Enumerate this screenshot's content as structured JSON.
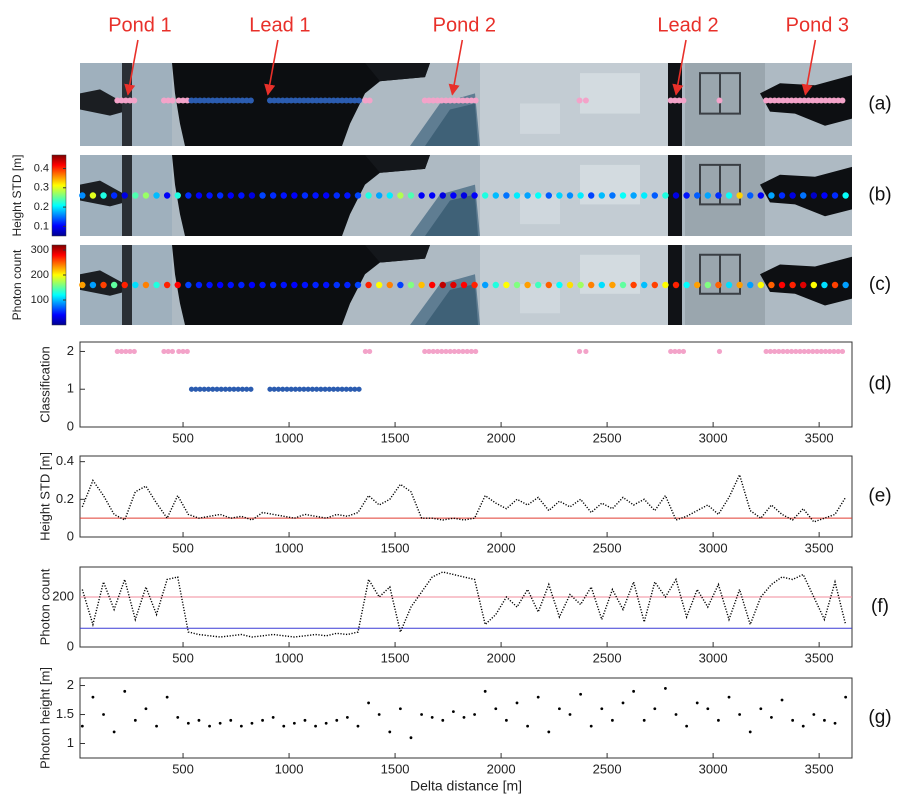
{
  "chart_data": [
    {
      "type": "image-strip",
      "panel_label": "(a)",
      "xlim": [
        14,
        3655
      ],
      "annotations": [
        {
          "text": "Pond 1",
          "x": 240
        },
        {
          "text": "Lead 1",
          "x": 900
        },
        {
          "text": "Pond 2",
          "x": 1770
        },
        {
          "text": "Lead 2",
          "x": 2825
        },
        {
          "text": "Pond 3",
          "x": 3435
        }
      ]
    },
    {
      "type": "image-strip",
      "panel_label": "(b)",
      "xlim": [
        14,
        3655
      ],
      "ylabel": "Height STD [m]",
      "colormap": "jet",
      "clim": [
        0.05,
        0.47
      ],
      "cticks": [
        0.1,
        0.2,
        0.3,
        0.4
      ]
    },
    {
      "type": "image-strip",
      "panel_label": "(c)",
      "xlim": [
        14,
        3655
      ],
      "ylabel": "Photon count",
      "colormap": "jet",
      "clim": [
        0,
        320
      ],
      "cticks": [
        100,
        200,
        300
      ]
    },
    {
      "type": "scatter",
      "panel_label": "(d)",
      "ylabel": "Classification",
      "xlim": [
        14,
        3655
      ],
      "ylim": [
        0,
        2.25
      ],
      "xticks": [
        500,
        1000,
        1500,
        2000,
        2500,
        3000,
        3500
      ],
      "yticks": [
        0,
        1,
        2
      ],
      "class_colors": [
        "#2b5cb0",
        "#f3a3c9"
      ],
      "x": [
        190,
        210,
        230,
        250,
        270,
        410,
        430,
        450,
        480,
        500,
        520,
        540,
        560,
        580,
        600,
        620,
        640,
        660,
        680,
        700,
        720,
        740,
        760,
        780,
        800,
        820,
        910,
        930,
        950,
        970,
        990,
        1010,
        1030,
        1050,
        1070,
        1090,
        1110,
        1130,
        1150,
        1170,
        1190,
        1210,
        1230,
        1250,
        1270,
        1290,
        1310,
        1330,
        1360,
        1380,
        1640,
        1660,
        1680,
        1700,
        1720,
        1740,
        1760,
        1780,
        1800,
        1820,
        1840,
        1860,
        1880,
        2370,
        2400,
        2800,
        2820,
        2840,
        2860,
        3030,
        3250,
        3270,
        3290,
        3310,
        3330,
        3350,
        3370,
        3390,
        3410,
        3430,
        3450,
        3470,
        3490,
        3510,
        3530,
        3550,
        3570,
        3590,
        3610
      ],
      "values": [
        2,
        2,
        2,
        2,
        2,
        2,
        2,
        2,
        2,
        2,
        2,
        1,
        1,
        1,
        1,
        1,
        1,
        1,
        1,
        1,
        1,
        1,
        1,
        1,
        1,
        1,
        1,
        1,
        1,
        1,
        1,
        1,
        1,
        1,
        1,
        1,
        1,
        1,
        1,
        1,
        1,
        1,
        1,
        1,
        1,
        1,
        1,
        1,
        2,
        2,
        2,
        2,
        2,
        2,
        2,
        2,
        2,
        2,
        2,
        2,
        2,
        2,
        2,
        2,
        2,
        2,
        2,
        2,
        2,
        2,
        2,
        2,
        2,
        2,
        2,
        2,
        2,
        2,
        2,
        2,
        2,
        2,
        2,
        2,
        2,
        2,
        2,
        2,
        2
      ]
    },
    {
      "type": "line",
      "panel_label": "(e)",
      "ylabel": "Height STD [m]",
      "xlim": [
        14,
        3655
      ],
      "ylim": [
        0,
        0.43
      ],
      "xticks": [
        500,
        1000,
        1500,
        2000,
        2500,
        3000,
        3500
      ],
      "yticks": [
        0,
        0.2,
        0.4
      ],
      "color": "#000000",
      "hlines": [
        {
          "value": 0.1,
          "color": "#e03c31"
        }
      ],
      "x": [
        25,
        75,
        125,
        175,
        225,
        275,
        325,
        375,
        425,
        475,
        525,
        575,
        625,
        675,
        725,
        775,
        825,
        875,
        925,
        975,
        1025,
        1075,
        1125,
        1175,
        1225,
        1275,
        1325,
        1375,
        1425,
        1475,
        1525,
        1575,
        1625,
        1675,
        1725,
        1775,
        1825,
        1875,
        1925,
        1975,
        2025,
        2075,
        2125,
        2175,
        2225,
        2275,
        2325,
        2375,
        2425,
        2475,
        2525,
        2575,
        2625,
        2675,
        2725,
        2775,
        2825,
        2875,
        2925,
        2975,
        3025,
        3075,
        3125,
        3175,
        3225,
        3275,
        3325,
        3375,
        3425,
        3475,
        3525,
        3575,
        3625
      ],
      "values": [
        0.16,
        0.3,
        0.22,
        0.12,
        0.09,
        0.24,
        0.27,
        0.18,
        0.1,
        0.22,
        0.12,
        0.1,
        0.11,
        0.12,
        0.1,
        0.11,
        0.09,
        0.13,
        0.12,
        0.11,
        0.1,
        0.12,
        0.11,
        0.1,
        0.12,
        0.11,
        0.13,
        0.22,
        0.17,
        0.2,
        0.28,
        0.24,
        0.1,
        0.1,
        0.09,
        0.1,
        0.09,
        0.1,
        0.22,
        0.18,
        0.15,
        0.2,
        0.17,
        0.21,
        0.14,
        0.19,
        0.16,
        0.2,
        0.13,
        0.18,
        0.15,
        0.21,
        0.17,
        0.2,
        0.14,
        0.22,
        0.09,
        0.11,
        0.14,
        0.17,
        0.12,
        0.21,
        0.33,
        0.14,
        0.1,
        0.17,
        0.12,
        0.09,
        0.15,
        0.08,
        0.1,
        0.12,
        0.21
      ]
    },
    {
      "type": "line",
      "panel_label": "(f)",
      "ylabel": "Photon count",
      "xlim": [
        14,
        3655
      ],
      "ylim": [
        0,
        320
      ],
      "xticks": [
        500,
        1000,
        1500,
        2000,
        2500,
        3000,
        3500
      ],
      "yticks": [
        0,
        200
      ],
      "color": "#000000",
      "hlines": [
        {
          "value": 200,
          "color": "#f28b9b"
        },
        {
          "value": 75,
          "color": "#3b3bd6"
        }
      ],
      "x": [
        25,
        75,
        125,
        175,
        225,
        275,
        325,
        375,
        425,
        475,
        525,
        575,
        625,
        675,
        725,
        775,
        825,
        875,
        925,
        975,
        1025,
        1075,
        1125,
        1175,
        1225,
        1275,
        1325,
        1375,
        1425,
        1475,
        1525,
        1575,
        1625,
        1675,
        1725,
        1775,
        1825,
        1875,
        1925,
        1975,
        2025,
        2075,
        2125,
        2175,
        2225,
        2275,
        2325,
        2375,
        2425,
        2475,
        2525,
        2575,
        2625,
        2675,
        2725,
        2775,
        2825,
        2875,
        2925,
        2975,
        3025,
        3075,
        3125,
        3175,
        3225,
        3275,
        3325,
        3375,
        3425,
        3475,
        3525,
        3575,
        3625
      ],
      "values": [
        230,
        90,
        260,
        150,
        270,
        110,
        240,
        130,
        270,
        280,
        60,
        50,
        45,
        40,
        45,
        50,
        40,
        45,
        50,
        45,
        40,
        45,
        50,
        45,
        55,
        50,
        60,
        270,
        200,
        240,
        60,
        160,
        220,
        280,
        300,
        290,
        280,
        270,
        90,
        130,
        200,
        160,
        230,
        140,
        250,
        120,
        210,
        170,
        240,
        110,
        230,
        150,
        260,
        100,
        260,
        200,
        270,
        120,
        230,
        160,
        250,
        110,
        230,
        90,
        200,
        250,
        280,
        270,
        290,
        200,
        110,
        260,
        90
      ]
    },
    {
      "type": "scatter",
      "panel_label": "(g)",
      "ylabel": "Photon height [m]",
      "xlabel": "Delta distance [m]",
      "xlim": [
        14,
        3655
      ],
      "ylim": [
        0.75,
        2.13
      ],
      "xticks": [
        500,
        1000,
        1500,
        2000,
        2500,
        3000,
        3500
      ],
      "yticks": [
        1,
        1.5,
        2
      ],
      "color": "#000000",
      "x": [
        25,
        75,
        125,
        175,
        225,
        275,
        325,
        375,
        425,
        475,
        525,
        575,
        625,
        675,
        725,
        775,
        825,
        875,
        925,
        975,
        1025,
        1075,
        1125,
        1175,
        1225,
        1275,
        1325,
        1375,
        1425,
        1475,
        1525,
        1575,
        1625,
        1675,
        1725,
        1775,
        1825,
        1875,
        1925,
        1975,
        2025,
        2075,
        2125,
        2175,
        2225,
        2275,
        2325,
        2375,
        2425,
        2475,
        2525,
        2575,
        2625,
        2675,
        2725,
        2775,
        2825,
        2875,
        2925,
        2975,
        3025,
        3075,
        3125,
        3175,
        3225,
        3275,
        3325,
        3375,
        3425,
        3475,
        3525,
        3575,
        3625
      ],
      "values": [
        1.3,
        1.8,
        1.5,
        1.2,
        1.9,
        1.4,
        1.6,
        1.3,
        1.8,
        1.45,
        1.35,
        1.4,
        1.3,
        1.35,
        1.4,
        1.3,
        1.35,
        1.4,
        1.45,
        1.3,
        1.35,
        1.4,
        1.3,
        1.35,
        1.4,
        1.45,
        1.3,
        1.7,
        1.5,
        1.2,
        1.6,
        1.1,
        1.5,
        1.45,
        1.4,
        1.55,
        1.45,
        1.5,
        1.9,
        1.6,
        1.4,
        1.7,
        1.3,
        1.8,
        1.2,
        1.6,
        1.5,
        1.85,
        1.3,
        1.6,
        1.4,
        1.7,
        1.9,
        1.4,
        1.6,
        1.95,
        1.5,
        1.3,
        1.7,
        1.6,
        1.4,
        1.8,
        1.5,
        1.2,
        1.6,
        1.45,
        1.75,
        1.4,
        1.3,
        1.5,
        1.4,
        1.35,
        1.8
      ]
    }
  ]
}
